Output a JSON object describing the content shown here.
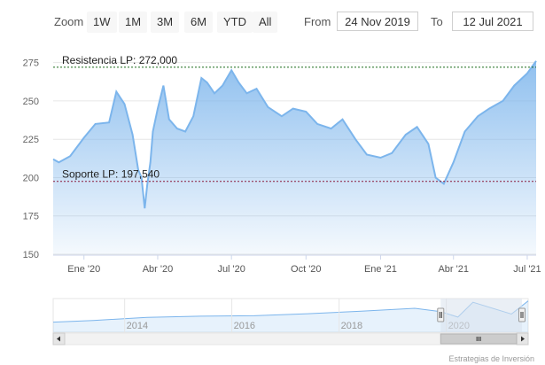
{
  "toolbar": {
    "zoom_label": "Zoom",
    "buttons": [
      "1W",
      "1M",
      "3M",
      "6M",
      "YTD",
      "All"
    ],
    "from_label": "From",
    "from_value": "24 Nov 2019",
    "to_label": "To",
    "to_value": "12 Jul 2021"
  },
  "credit": "Estrategias de Inversión",
  "colors": {
    "line": "#7cb5ec",
    "accent_dashed_resistance": "#1a6b1a",
    "accent_dashed_support": "#8b1a3a",
    "navigator_mask": "#d9e1ec"
  },
  "chart_data": {
    "type": "area",
    "title": "",
    "xlabel": "",
    "ylabel": "",
    "ylim": [
      150,
      280
    ],
    "yticks": [
      150,
      175,
      200,
      225,
      250,
      275
    ],
    "xlim": [
      "2019-11-24",
      "2021-07-12"
    ],
    "xticks": [
      {
        "date": "2020-01-01",
        "label": "Ene '20"
      },
      {
        "date": "2020-04-01",
        "label": "Abr '20"
      },
      {
        "date": "2020-07-01",
        "label": "Jul '20"
      },
      {
        "date": "2020-10-01",
        "label": "Oct '20"
      },
      {
        "date": "2021-01-01",
        "label": "Ene '21"
      },
      {
        "date": "2021-04-01",
        "label": "Abr '21"
      },
      {
        "date": "2021-07-01",
        "label": "Jul '21"
      }
    ],
    "series": [
      {
        "x": [
          "2019-11-24",
          "2019-12-01",
          "2019-12-15",
          "2020-01-01",
          "2020-01-15",
          "2020-02-01",
          "2020-02-10",
          "2020-02-20",
          "2020-03-01",
          "2020-03-08",
          "2020-03-12",
          "2020-03-16",
          "2020-03-19",
          "2020-03-23",
          "2020-03-26",
          "2020-04-01",
          "2020-04-08",
          "2020-04-15",
          "2020-04-25",
          "2020-05-05",
          "2020-05-15",
          "2020-05-25",
          "2020-06-01",
          "2020-06-10",
          "2020-06-20",
          "2020-07-01",
          "2020-07-10",
          "2020-07-20",
          "2020-08-01",
          "2020-08-15",
          "2020-09-01",
          "2020-09-15",
          "2020-10-01",
          "2020-10-15",
          "2020-11-01",
          "2020-11-15",
          "2020-12-01",
          "2020-12-15",
          "2021-01-01",
          "2021-01-15",
          "2021-02-01",
          "2021-02-15",
          "2021-03-01",
          "2021-03-10",
          "2021-03-20",
          "2021-04-01",
          "2021-04-15",
          "2021-05-01",
          "2021-05-15",
          "2021-06-01",
          "2021-06-15",
          "2021-07-01",
          "2021-07-12"
        ],
        "values": [
          212,
          210,
          214,
          226,
          235,
          236,
          256,
          248,
          228,
          205,
          200,
          180,
          195,
          210,
          230,
          245,
          260,
          238,
          232,
          230,
          240,
          265,
          262,
          255,
          260,
          270,
          262,
          255,
          258,
          246,
          240,
          245,
          243,
          235,
          232,
          238,
          225,
          215,
          213,
          216,
          228,
          233,
          222,
          200,
          196,
          210,
          230,
          240,
          245,
          250,
          260,
          268,
          276
        ]
      }
    ],
    "annotations": [
      {
        "label": "Resistencia LP: 272,000",
        "y": 272
      },
      {
        "label": "Soporte LP: 197,540",
        "y": 197.54
      }
    ],
    "navigator": {
      "labels": [
        {
          "date": "2014-01-01",
          "label": "2014"
        },
        {
          "date": "2016-01-01",
          "label": "2016"
        },
        {
          "date": "2018-01-01",
          "label": "2018"
        },
        {
          "date": "2020-01-01",
          "label": "2020"
        }
      ],
      "xlim": [
        "2012-09-01",
        "2021-07-12"
      ],
      "ylim": [
        90,
        290
      ],
      "x": [
        "2012-09-01",
        "2013-06-01",
        "2014-06-01",
        "2015-06-01",
        "2016-06-01",
        "2017-06-01",
        "2018-06-01",
        "2019-06-01",
        "2019-11-24",
        "2020-03-20",
        "2020-07-01",
        "2021-03-20",
        "2021-07-12"
      ],
      "values": [
        150,
        160,
        178,
        185,
        188,
        200,
        215,
        232,
        212,
        180,
        268,
        198,
        276
      ]
    }
  }
}
